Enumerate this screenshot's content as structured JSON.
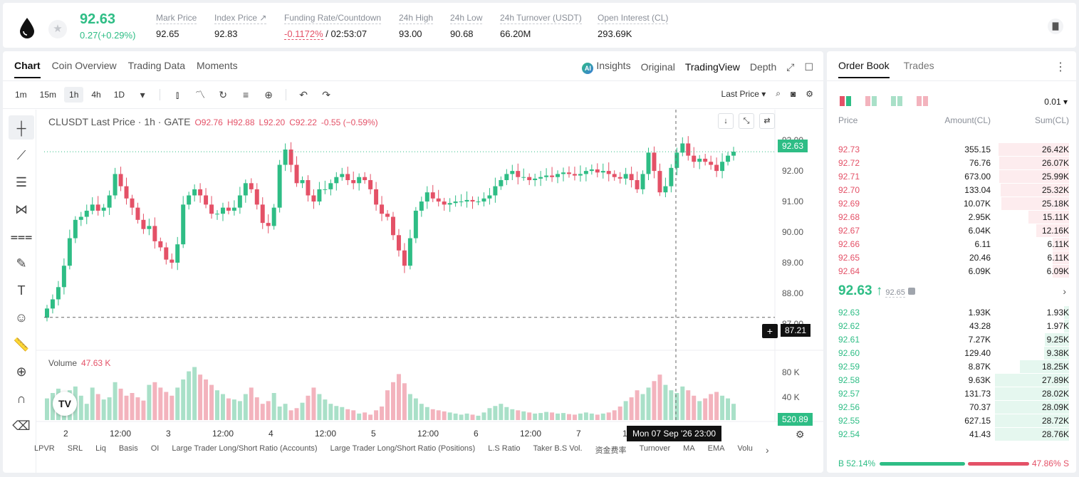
{
  "header": {
    "last_price": "92.63",
    "change": "0.27(+0.29%)",
    "stats": [
      {
        "label": "Mark Price",
        "value": "92.65"
      },
      {
        "label": "Index Price ↗",
        "value": "92.83"
      },
      {
        "label": "Funding Rate/Countdown",
        "value_red": "-0.1172%",
        "value": " / 02:53:07"
      },
      {
        "label": "24h High",
        "value": "93.00"
      },
      {
        "label": "24h Low",
        "value": "90.68"
      },
      {
        "label": "24h Turnover (USDT)",
        "value": "66.20M"
      },
      {
        "label": "Open Interest (CL)",
        "value": "293.69K"
      }
    ]
  },
  "chart_tabs": [
    "Chart",
    "Coin Overview",
    "Trading Data",
    "Moments"
  ],
  "view_tabs": {
    "insights": "Insights",
    "original": "Original",
    "tradingview": "TradingView",
    "depth": "Depth"
  },
  "intervals": [
    "1m",
    "15m",
    "1h",
    "4h",
    "1D"
  ],
  "price_type": "Last Price",
  "legend": {
    "symbol": "CLUSDT Last Price · 1h · GATE",
    "o": "O92.76",
    "h": "H92.88",
    "l": "L92.20",
    "c": "C92.22",
    "chg": "-0.55 (−0.59%)"
  },
  "volume_legend": {
    "label": "Volume",
    "value": "47.63 K"
  },
  "price_tag": "92.63",
  "cross_price": "87.21",
  "vol_tag": "520.89",
  "crosshair_time": "Mon 07 Sep '26   23:00",
  "bottom_indicators": [
    "LPVR",
    "SRL",
    "Liq",
    "Basis",
    "OI",
    "Large Trader Long/Short Ratio (Accounts)",
    "Large Trader Long/Short Ratio (Positions)",
    "L.S Ratio",
    "Taker B.S Vol.",
    "资金费率",
    "Turnover",
    "MA",
    "EMA",
    "Volu"
  ],
  "chart_data": {
    "type": "candlestick",
    "symbol": "CLUSDT",
    "interval": "1h",
    "ylim": [
      86.6,
      93.4
    ],
    "y_ticks": [
      "93.00",
      "92.00",
      "91.00",
      "90.00",
      "89.00",
      "88.00",
      "87.00"
    ],
    "x_ticks": [
      "2",
      "12:00",
      "3",
      "12:00",
      "4",
      "12:00",
      "5",
      "12:00",
      "6",
      "12:00",
      "7",
      "12:00",
      "21:0"
    ],
    "volume_ticks": [
      "80 K",
      "40 K"
    ],
    "close_series": [
      87.5,
      87.8,
      88.2,
      88.9,
      89.8,
      90.4,
      90.5,
      90.7,
      90.9,
      90.7,
      90.8,
      91.2,
      91.9,
      91.5,
      91.1,
      90.8,
      90.4,
      90.1,
      90.2,
      89.7,
      89.5,
      89.1,
      89.0,
      89.6,
      90.9,
      91.2,
      91.4,
      91.2,
      90.9,
      90.6,
      90.6,
      90.8,
      90.7,
      90.8,
      91.2,
      91.6,
      91.4,
      90.9,
      90.3,
      90.2,
      90.8,
      92.2,
      92.7,
      92.2,
      91.6,
      91.7,
      91.2,
      91.0,
      91.4,
      91.4,
      91.6,
      91.8,
      91.9,
      91.7,
      91.6,
      91.8,
      91.7,
      91.4,
      90.9,
      90.6,
      90.5,
      89.9,
      89.4,
      88.9,
      89.8,
      90.7,
      91.0,
      91.3,
      91.1,
      91.0,
      90.9,
      90.95,
      91.0,
      91.0,
      91.05,
      91.0,
      91.0,
      91.1,
      91.2,
      91.5,
      91.7,
      91.9,
      92.0,
      91.8,
      91.8,
      91.7,
      91.75,
      91.8,
      91.85,
      91.8,
      91.9,
      91.95,
      91.9,
      91.85,
      91.9,
      92.0,
      92.05,
      91.95,
      92.0,
      91.9,
      91.8,
      91.75,
      91.9,
      91.7,
      91.4,
      91.9,
      92.6,
      92.0,
      91.3,
      91.5,
      92.1,
      92.6,
      92.9,
      92.5,
      92.3,
      92.4,
      92.3,
      92.2,
      92.0,
      92.3,
      92.5,
      92.63
    ],
    "volume_series": [
      40,
      50,
      58,
      30,
      55,
      62,
      45,
      30,
      60,
      48,
      38,
      42,
      70,
      58,
      45,
      50,
      42,
      36,
      65,
      70,
      60,
      52,
      45,
      60,
      75,
      90,
      98,
      84,
      75,
      65,
      55,
      48,
      40,
      38,
      35,
      48,
      60,
      42,
      30,
      35,
      50,
      25,
      30,
      18,
      22,
      32,
      45,
      60,
      48,
      38,
      30,
      26,
      24,
      20,
      18,
      12,
      14,
      10,
      18,
      25,
      55,
      70,
      85,
      68,
      48,
      40,
      30,
      24,
      20,
      18,
      16,
      14,
      12,
      10,
      12,
      10,
      8,
      14,
      22,
      26,
      30,
      24,
      20,
      18,
      16,
      14,
      12,
      13,
      15,
      14,
      12,
      13,
      11,
      10,
      12,
      14,
      12,
      10,
      12,
      14,
      18,
      25,
      35,
      42,
      55,
      48,
      60,
      72,
      84,
      65,
      55,
      50,
      62,
      55,
      45,
      35,
      40,
      48,
      52,
      45,
      40,
      30,
      45
    ],
    "last_price": 92.63,
    "crosshair_price": 87.21
  },
  "orderbook": {
    "tabs": [
      "Order Book",
      "Trades"
    ],
    "tick_size": "0.01",
    "headers": {
      "price": "Price",
      "amount": "Amount(CL)",
      "sum": "Sum(CL)"
    },
    "asks": [
      [
        "92.73",
        "355.15",
        "26.42K",
        0.95
      ],
      [
        "92.72",
        "76.76",
        "26.07K",
        0.94
      ],
      [
        "92.71",
        "673.00",
        "25.99K",
        0.94
      ],
      [
        "92.70",
        "133.04",
        "25.32K",
        0.92
      ],
      [
        "92.69",
        "10.07K",
        "25.18K",
        0.91
      ],
      [
        "92.68",
        "2.95K",
        "15.11K",
        0.55
      ],
      [
        "92.67",
        "6.04K",
        "12.16K",
        0.44
      ],
      [
        "92.66",
        "6.11",
        "6.11K",
        0.22
      ],
      [
        "92.65",
        "20.46",
        "6.11K",
        0.22
      ],
      [
        "92.64",
        "6.09K",
        "6.09K",
        0.22
      ]
    ],
    "mid_price": "92.63 ↑",
    "mark_price": "92.65",
    "bids": [
      [
        "92.63",
        "1.93K",
        "1.93K",
        0.07
      ],
      [
        "92.62",
        "43.28",
        "1.97K",
        0.07
      ],
      [
        "92.61",
        "7.27K",
        "9.25K",
        0.33
      ],
      [
        "92.60",
        "129.40",
        "9.38K",
        0.34
      ],
      [
        "92.59",
        "8.87K",
        "18.25K",
        0.66
      ],
      [
        "92.58",
        "9.63K",
        "27.89K",
        1.0
      ],
      [
        "92.57",
        "131.73",
        "28.02K",
        1.0
      ],
      [
        "92.56",
        "70.37",
        "28.09K",
        1.0
      ],
      [
        "92.55",
        "627.15",
        "28.72K",
        1.0
      ],
      [
        "92.54",
        "41.43",
        "28.76K",
        1.0
      ]
    ],
    "buy_ratio": "B 52.14%",
    "sell_ratio": "47.86% S"
  }
}
